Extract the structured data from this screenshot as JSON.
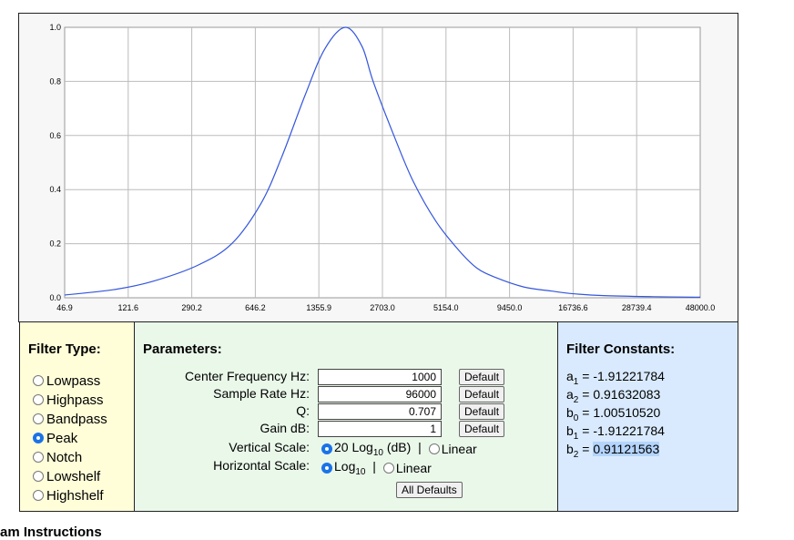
{
  "chart_data": {
    "type": "line",
    "x_scale": "log10",
    "xlim": [
      46.9,
      48000.0
    ],
    "ylim": [
      0.0,
      1.0
    ],
    "x_tick_labels": [
      "46.9",
      "121.6",
      "290.2",
      "646.2",
      "1355.9",
      "2703.0",
      "5154.0",
      "9450.0",
      "16736.6",
      "28739.4",
      "48000.0"
    ],
    "y_tick_labels": [
      "1.0",
      "0.8",
      "0.6",
      "0.4",
      "0.2",
      "0.0"
    ],
    "y_tick_values": [
      1.0,
      0.8,
      0.6,
      0.4,
      0.2,
      0.0
    ],
    "grid": true,
    "line_color": "#3355dd",
    "series": [
      {
        "x": [
          46.9,
          80,
          121.6,
          200,
          290.2,
          400,
          500,
          646.2,
          800,
          1000,
          1200,
          1355.9,
          1700,
          2100,
          2703.0,
          3500,
          4200,
          5154.0,
          7000,
          9450.0,
          12000,
          16736.6,
          28739.4,
          48000.0
        ],
        "y": [
          0.01,
          0.03,
          0.06,
          0.12,
          0.2,
          0.35,
          0.52,
          0.75,
          0.92,
          1.0,
          0.93,
          0.8,
          0.6,
          0.43,
          0.28,
          0.17,
          0.11,
          0.075,
          0.04,
          0.025,
          0.015,
          0.008,
          0.004,
          0.002
        ]
      }
    ]
  },
  "filter_type": {
    "title": "Filter Type:",
    "options": [
      {
        "label": "Lowpass",
        "selected": false
      },
      {
        "label": "Highpass",
        "selected": false
      },
      {
        "label": "Bandpass",
        "selected": false
      },
      {
        "label": "Peak",
        "selected": true
      },
      {
        "label": "Notch",
        "selected": false
      },
      {
        "label": "Lowshelf",
        "selected": false
      },
      {
        "label": "Highshelf",
        "selected": false
      }
    ]
  },
  "parameters": {
    "title": "Parameters:",
    "fields": [
      {
        "label": "Center Frequency Hz:",
        "value": "1000",
        "button": "Default"
      },
      {
        "label": "Sample Rate Hz:",
        "value": "96000",
        "button": "Default"
      },
      {
        "label": "Q:",
        "value": "0.707",
        "button": "Default"
      },
      {
        "label": "Gain dB:",
        "value": "1",
        "button": "Default"
      }
    ],
    "vertical_scale": {
      "label": "Vertical Scale:",
      "opt1": "20 Log",
      "opt1_sub": "10",
      "opt1_suffix": " (dB)  |",
      "opt2": "Linear"
    },
    "horizontal_scale": {
      "label": "Horizontal Scale:",
      "opt1": "Log",
      "opt1_sub": "10",
      "opt1_suffix": "  |",
      "opt2": "Linear"
    },
    "all_defaults": "All Defaults"
  },
  "filter_constants": {
    "title": "Filter Constants:",
    "rows": [
      {
        "name": "a",
        "sub": "1",
        "value": "-1.91221784"
      },
      {
        "name": "a",
        "sub": "2",
        "value": "0.91632083"
      },
      {
        "name": "b",
        "sub": "0",
        "value": "1.00510520"
      },
      {
        "name": "b",
        "sub": "1",
        "value": "-1.91221784"
      },
      {
        "name": "b",
        "sub": "2",
        "value": "0.91121563"
      }
    ]
  },
  "footer": {
    "text": "am Instructions"
  }
}
